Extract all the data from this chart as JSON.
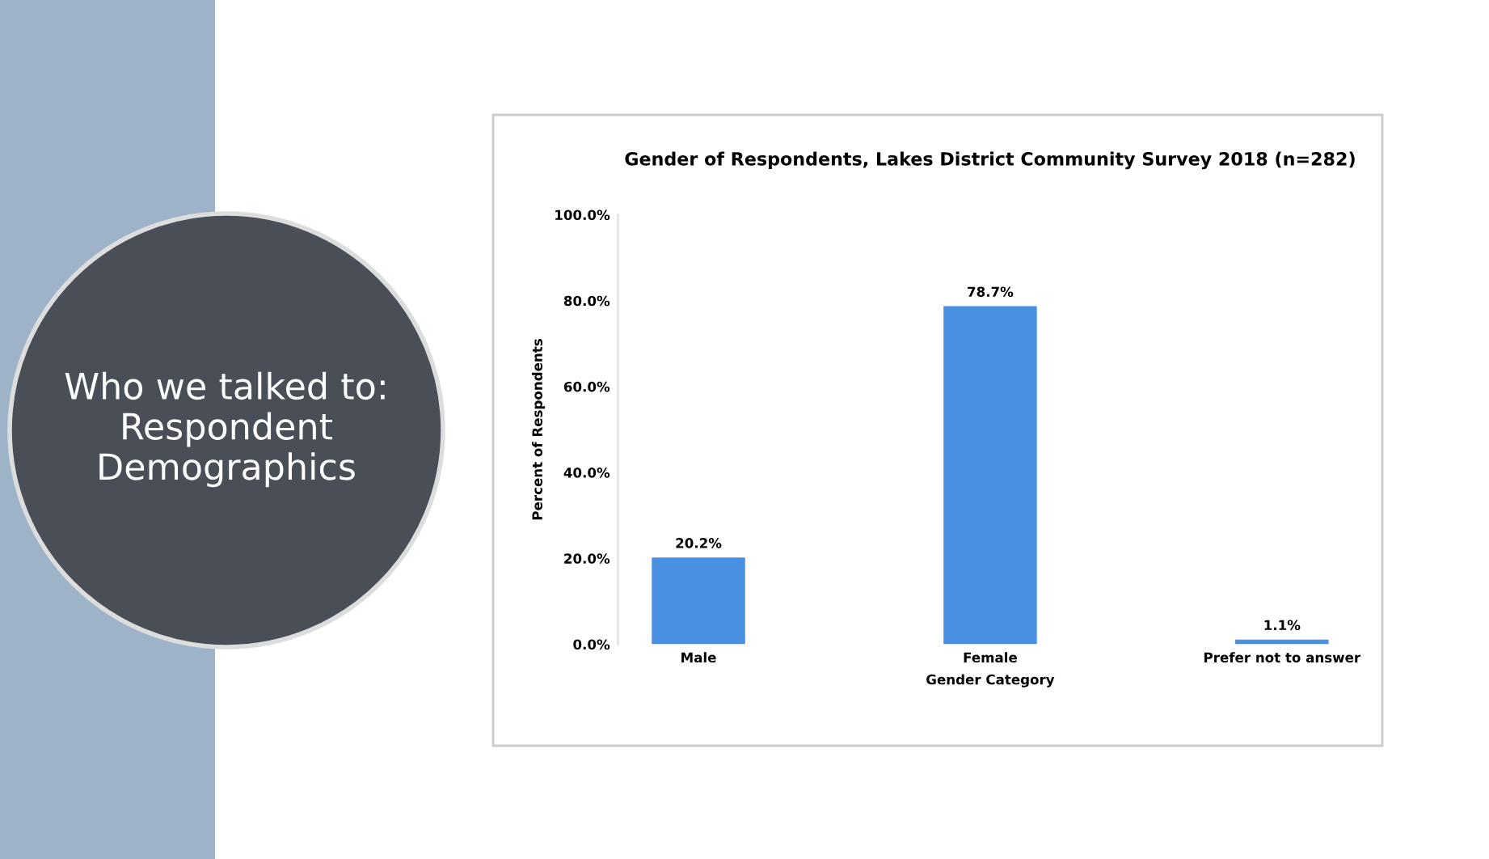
{
  "chart_data": {
    "type": "bar",
    "title": "Gender of Respondents, Lakes District Community Survey 2018 (n=282)",
    "xlabel": "Gender Category",
    "ylabel": "Percent of Respondents",
    "categories": [
      "Male",
      "Female",
      "Prefer not to answer"
    ],
    "values": [
      20.2,
      78.7,
      1.1
    ],
    "color": "#4a90e2",
    "value_labels": [
      "20.2%",
      "78.7%",
      "1.1%"
    ],
    "ylim": [
      0,
      100
    ],
    "yticks": [
      {
        "value": 0,
        "label": "0.0%"
      },
      {
        "value": 20,
        "label": "20.0%"
      },
      {
        "value": 40,
        "label": "40.0%"
      },
      {
        "value": 60,
        "label": "60.0%"
      },
      {
        "value": 80,
        "label": "80.0%"
      },
      {
        "value": 100,
        "label": "100.0%"
      }
    ],
    "grid": false,
    "annotations": [
      "Who we talked to: Respondent Demographics"
    ]
  }
}
